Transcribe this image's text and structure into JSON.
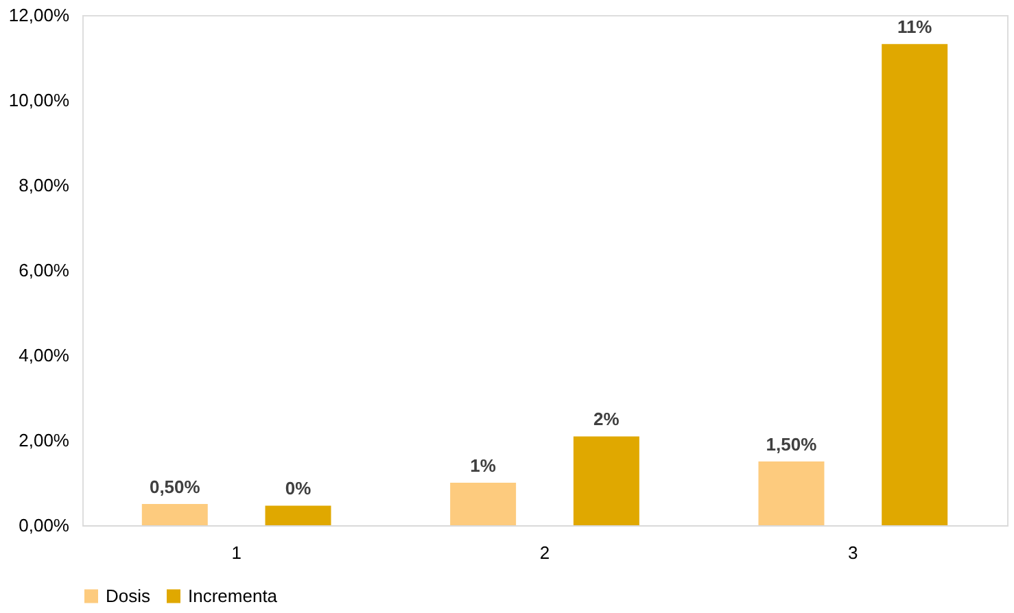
{
  "chart_data": {
    "type": "bar",
    "categories": [
      "1",
      "2",
      "3"
    ],
    "series": [
      {
        "name": "Dosis",
        "color": "#fdcb7e",
        "values": [
          0.5,
          1.0,
          1.5
        ],
        "value_labels": [
          "0,50%",
          "1%",
          "1,50%"
        ]
      },
      {
        "name": "Incrementa",
        "color": "#e0a800",
        "values": [
          0.46,
          2.09,
          11.32
        ],
        "value_labels": [
          "0%",
          "2%",
          "11%"
        ]
      }
    ],
    "ylim": [
      0,
      12
    ],
    "yticks": [
      {
        "value": 0,
        "label": "0,00%"
      },
      {
        "value": 2,
        "label": "2,00%"
      },
      {
        "value": 4,
        "label": "4,00%"
      },
      {
        "value": 6,
        "label": "6,00%"
      },
      {
        "value": 8,
        "label": "8,00%"
      },
      {
        "value": 10,
        "label": "10,00%"
      },
      {
        "value": 12,
        "label": "12,00%"
      }
    ],
    "grid": false,
    "legend": "bottom"
  }
}
